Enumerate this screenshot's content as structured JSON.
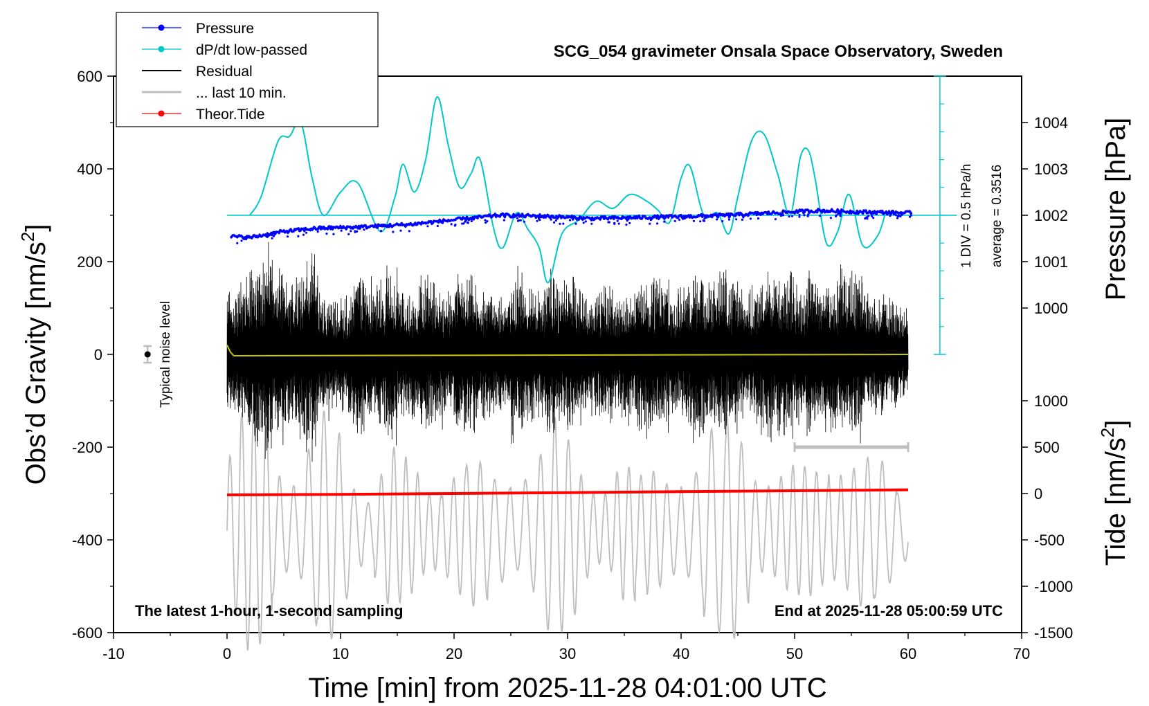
{
  "chart_data": {
    "type": "line",
    "title": "SCG_054 gravimeter Onsala Space Observatory, Sweden",
    "xlabel": "Time [min] from 2025-11-28 04:01:00 UTC",
    "xlim": [
      -10,
      70
    ],
    "x_ticks": [
      "-10",
      "0",
      "10",
      "20",
      "30",
      "40",
      "50",
      "60",
      "70"
    ],
    "left_axis": {
      "label_main": "Obs’d Gravity [nm/s",
      "label_sup": "2",
      "label_end": "]",
      "ylim": [
        -600,
        600
      ],
      "ticks": [
        "-600",
        "-400",
        "-200",
        "0",
        "200",
        "400",
        "600"
      ]
    },
    "pressure_axis": {
      "label": "Pressure [hPa]",
      "ticks": [
        "1000",
        "1001",
        "1002",
        "1003",
        "1004"
      ]
    },
    "tide_axis": {
      "label_main": "Tide [nm/s",
      "label_sup": "2",
      "label_end": "]",
      "ticks": [
        "-1500",
        "-1000",
        "-500",
        "0",
        "500",
        "1000"
      ]
    },
    "dpdt_scale": {
      "div_label": "1 DIV = 0.5 hPa/h",
      "average_label": "average = 0.3516"
    },
    "legend": [
      {
        "name": "Pressure",
        "color": "#0000ff",
        "marker": true
      },
      {
        "name": "dP/dt low-passed",
        "color": "#00c8c8",
        "marker": true
      },
      {
        "name": "Residual",
        "color": "#000000",
        "marker": false
      },
      {
        "name": "... last 10 min.",
        "color": "#bebebe",
        "marker": false
      },
      {
        "name": "Theor.Tide",
        "color": "#ff0000",
        "marker": true
      }
    ],
    "legend_position": "top-left",
    "noise_label": "Typical noise level",
    "noise_level": {
      "x": -7,
      "center": 0,
      "half_range": 18
    },
    "last10_bar": {
      "x": [
        50,
        60
      ],
      "y": -200
    },
    "annotation_left": "The latest 1-hour, 1-second sampling",
    "annotation_right": "End at 2025-11-28 05:00:59 UTC",
    "series": [
      {
        "name": "Pressure",
        "axis": "pressure_hPa",
        "x": [
          0,
          2,
          5,
          8,
          12,
          16,
          20,
          24,
          28,
          32,
          36,
          40,
          44,
          48,
          52,
          56,
          60
        ],
        "values": [
          1001.55,
          1001.52,
          1001.65,
          1001.72,
          1001.75,
          1001.8,
          1001.9,
          1002.0,
          1001.98,
          1001.93,
          1001.95,
          1001.97,
          1002.0,
          1002.05,
          1002.1,
          1002.07,
          1002.05
        ]
      },
      {
        "name": "dP/dt low-passed",
        "axis": "left_nm_s2",
        "x": [
          2,
          3,
          4.5,
          5.5,
          6.5,
          7.5,
          8.5,
          10,
          11.5,
          13.5,
          14.8,
          15.5,
          16.5,
          17.5,
          18.5,
          19.5,
          20.5,
          21.5,
          22.3,
          23.5,
          24.3,
          25.5,
          26.5,
          27.5,
          28.3,
          29.5,
          31,
          32.5,
          34,
          35.5,
          37,
          38,
          39,
          40,
          40.8,
          42,
          43.2,
          44.2,
          45,
          46.2,
          47.3,
          48.5,
          49.6,
          50.5,
          51.2,
          51.8,
          52.8,
          53.8,
          54.8,
          56,
          57.3,
          58
        ],
        "values": [
          300,
          340,
          460,
          470,
          500,
          380,
          300,
          350,
          370,
          265,
          340,
          410,
          350,
          420,
          555,
          450,
          360,
          390,
          420,
          270,
          230,
          305,
          270,
          230,
          155,
          260,
          290,
          330,
          315,
          345,
          330,
          310,
          285,
          380,
          405,
          300,
          305,
          260,
          340,
          460,
          475,
          390,
          300,
          425,
          440,
          380,
          240,
          265,
          345,
          235,
          255,
          305
        ]
      },
      {
        "name": "Residual",
        "axis": "left_nm_s2",
        "x_range": [
          0,
          60
        ],
        "envelope_abs": [
          150,
          180,
          220,
          260,
          200,
          170,
          230,
          240,
          150,
          130,
          140,
          200,
          180,
          170,
          210,
          150,
          160,
          190,
          170,
          140,
          190,
          180,
          150,
          160,
          140,
          210,
          180,
          150,
          200,
          170,
          190,
          160,
          150,
          170,
          140,
          160,
          200,
          190,
          180,
          150,
          170,
          220,
          180,
          200,
          190,
          160,
          170,
          200,
          180,
          210,
          170,
          200,
          190,
          180,
          230,
          200,
          160,
          150,
          130,
          120
        ],
        "mean": 0
      },
      {
        "name": "... last 10 min.",
        "axis": "left_nm_s2",
        "x_range": [
          0,
          60
        ],
        "center": -380,
        "envelope_abs": [
          200,
          260,
          280,
          300,
          220,
          180,
          160,
          220,
          260,
          240,
          200,
          150,
          120,
          180,
          200,
          160,
          140,
          120,
          150,
          200,
          210,
          180,
          150,
          120,
          140,
          160,
          220,
          240,
          260,
          220,
          200,
          150,
          140,
          160,
          200,
          160,
          120,
          140,
          150,
          170,
          190,
          200,
          240,
          220,
          260,
          250,
          200,
          180,
          160,
          150,
          140,
          150,
          160,
          200,
          240,
          220,
          180,
          150,
          120,
          100
        ]
      },
      {
        "name": "Theor.Tide",
        "axis": "tide_nm_s2",
        "x": [
          0,
          10,
          20,
          30,
          40,
          50,
          60
        ],
        "values": [
          -15,
          -10,
          0,
          10,
          20,
          30,
          40
        ]
      },
      {
        "name": "Residual low-passed",
        "axis": "left_nm_s2",
        "x": [
          0,
          0.3,
          0.6,
          60
        ],
        "values": [
          20,
          5,
          -3,
          0
        ],
        "color": "#c8c800"
      }
    ]
  }
}
